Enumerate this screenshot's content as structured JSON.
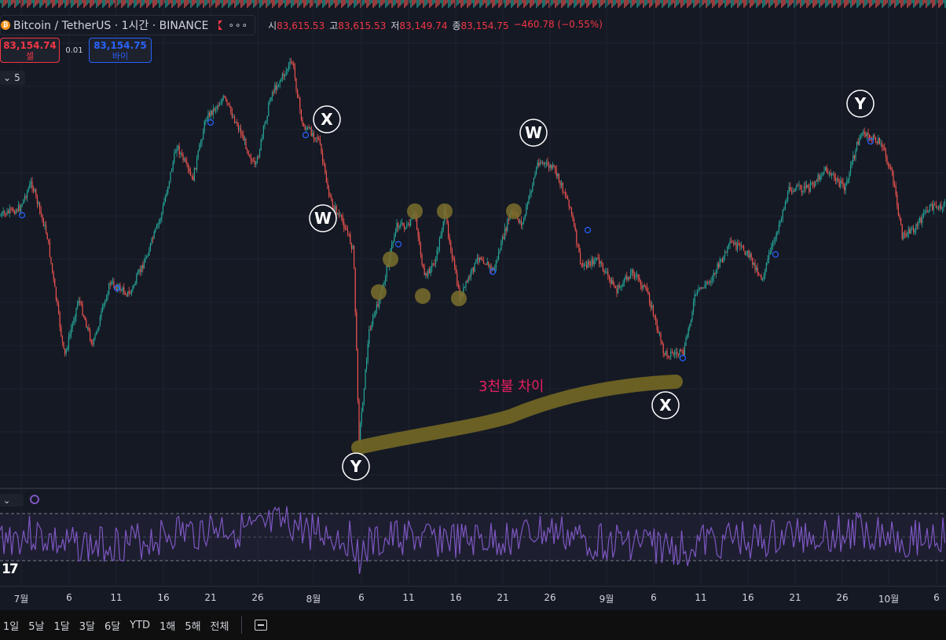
{
  "legend": {
    "symbol": "Bitcoin / TetherUS · 1시간 · BINANCE",
    "coin_glyph": "₿",
    "menu_glyph": "∘∘∘",
    "ohlc": {
      "open_label": "시",
      "open": "83,615.53",
      "high_label": "고",
      "high": "83,615.53",
      "low_label": "저",
      "low": "83,149.74",
      "close_label": "종",
      "close": "83,154.75",
      "change": "−460.78 (−0.55%)"
    }
  },
  "trade": {
    "sell_price": "83,154.74",
    "sell_label": "셀",
    "spread": "0.01",
    "buy_price": "83,154.75",
    "buy_label": "바이"
  },
  "indicator_toggle": {
    "chevron": "⌄",
    "count": "5"
  },
  "rsi_toggle": {
    "chevron": "⌄"
  },
  "annotations": {
    "waves": [
      {
        "label": "X"
      },
      {
        "label": "W"
      },
      {
        "label": "W"
      },
      {
        "label": "Y"
      },
      {
        "label": "X"
      },
      {
        "label": "Y"
      }
    ],
    "note": "3천불 차이"
  },
  "xaxis": {
    "labels": [
      {
        "t": "7월"
      },
      {
        "t": "6"
      },
      {
        "t": "11"
      },
      {
        "t": "16"
      },
      {
        "t": "21"
      },
      {
        "t": "26"
      },
      {
        "t": "8월"
      },
      {
        "t": "6"
      },
      {
        "t": "11"
      },
      {
        "t": "16"
      },
      {
        "t": "21"
      },
      {
        "t": "26"
      },
      {
        "t": "9월"
      },
      {
        "t": "6"
      },
      {
        "t": "11"
      },
      {
        "t": "16"
      },
      {
        "t": "21"
      },
      {
        "t": "26"
      },
      {
        "t": "10월"
      },
      {
        "t": "6"
      }
    ]
  },
  "logo": "17",
  "bottom_bar": {
    "ranges": [
      "1일",
      "5날",
      "1달",
      "3달",
      "6달",
      "YTD",
      "1해",
      "5해",
      "전체"
    ]
  },
  "colors": {
    "background": "#151924",
    "up": "#26a69a",
    "down": "#ef5350",
    "rsi": "#7e57c2",
    "highlight": "#7a6f2c"
  }
}
